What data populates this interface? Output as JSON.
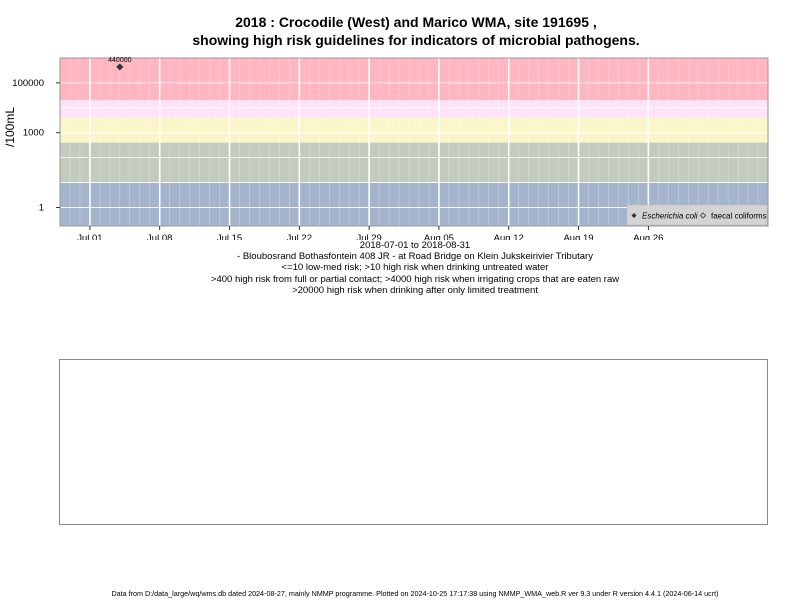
{
  "chart_data": {
    "type": "scatter",
    "title_lines": [
      "2018 : Crocodile (West) and Marico WMA, site 191695 ,",
      "showing high risk guidelines for indicators of microbial pathogens."
    ],
    "ylabel": "/100mL",
    "y_scale": "log10",
    "y_ticks": [
      {
        "value": 1,
        "label": "1"
      },
      {
        "value": 1000,
        "label": "1000"
      },
      {
        "value": 100000,
        "label": "100000"
      }
    ],
    "ylim": [
      0.18,
      1000000
    ],
    "xlim": [
      "2018-06-28",
      "2018-09-07"
    ],
    "x_ticks": [
      {
        "date": "2018-07-01",
        "label": "Jul 01"
      },
      {
        "date": "2018-07-08",
        "label": "Jul 08"
      },
      {
        "date": "2018-07-15",
        "label": "Jul 15"
      },
      {
        "date": "2018-07-22",
        "label": "Jul 22"
      },
      {
        "date": "2018-07-29",
        "label": "Jul 29"
      },
      {
        "date": "2018-08-05",
        "label": "Aug 05"
      },
      {
        "date": "2018-08-12",
        "label": "Aug 12"
      },
      {
        "date": "2018-08-19",
        "label": "Aug 19"
      },
      {
        "date": "2018-08-26",
        "label": "Aug 26"
      }
    ],
    "grid": true,
    "risk_bands": [
      {
        "from": 20000,
        "to": 1000000,
        "color": "#ffb6c1"
      },
      {
        "from": 4000,
        "to": 20000,
        "color": "#fde2f8"
      },
      {
        "from": 400,
        "to": 4000,
        "color": "#fbf6c8"
      },
      {
        "from": 10,
        "to": 400,
        "color": "#c3cbbe"
      },
      {
        "from": 0.18,
        "to": 10,
        "color": "#a3b4cc"
      }
    ],
    "series": [
      {
        "name": "Escherichia coli",
        "marker": "filled-diamond",
        "color": "#333333",
        "points": [
          {
            "x": "2018-07-04",
            "y": 440000,
            "label": "440000"
          }
        ]
      },
      {
        "name": "faecal coliforms",
        "marker": "open-diamond",
        "color": "#333333",
        "points": []
      }
    ],
    "legend_position": "bottom-right"
  },
  "captions": [
    "2018-07-01 to 2018-08-31",
    "- Bloubosrand Bothasfontein 408 JR - at Road Bridge on Klein Jukskeirivier Tributary",
    "<=10 low-med risk; >10 high risk when drinking untreated water",
    ">400 high risk from full or partial contact; >4000 high risk when irrigating crops that are eaten raw",
    ">20000 high risk when drinking after only limited treatment"
  ],
  "footer": "Data from D:/data_large/wq/wms.db dated 2024-08-27, mainly NMMP programme. Plotted on 2024-10-25 17:17:38 using NMMP_WMA_web.R ver 9.3 under R version 4.4.1 (2024-06-14 ucrt)"
}
